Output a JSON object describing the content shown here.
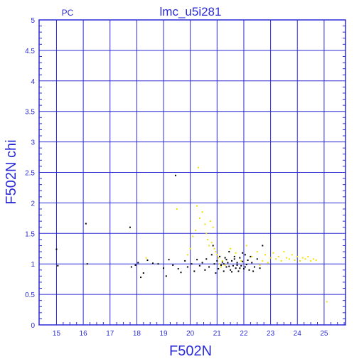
{
  "chart_data": {
    "type": "scatter",
    "title": "lmc_u5i281",
    "tag": "PC",
    "xlabel": "F502N",
    "ylabel": "F502N chi",
    "xlim": [
      14.35,
      25.8
    ],
    "ylim": [
      0,
      5
    ],
    "xticks": [
      15,
      16,
      17,
      18,
      19,
      20,
      21,
      22,
      23,
      24,
      25
    ],
    "yticks": [
      0,
      0.5,
      1,
      1.5,
      2,
      2.5,
      3,
      3.5,
      4,
      4.5,
      5
    ],
    "grid": true,
    "colors": {
      "axis": "#2b2bd6",
      "grid": "#2b2bd6",
      "black": "#000000",
      "yellow": "#f2e000"
    },
    "series": [
      {
        "color_key": "black",
        "points": [
          [
            15.0,
            1.24
          ],
          [
            15.05,
            0.97
          ],
          [
            16.1,
            1.66
          ],
          [
            16.15,
            1.0
          ],
          [
            17.75,
            1.6
          ],
          [
            17.8,
            0.95
          ],
          [
            17.95,
            0.98
          ],
          [
            18.05,
            1.02
          ],
          [
            18.15,
            0.78
          ],
          [
            18.25,
            0.85
          ],
          [
            18.4,
            1.06
          ],
          [
            18.6,
            1.01
          ],
          [
            18.8,
            1.0
          ],
          [
            19.0,
            0.93
          ],
          [
            19.1,
            0.8
          ],
          [
            19.2,
            1.07
          ],
          [
            19.35,
            0.98
          ],
          [
            19.45,
            2.45
          ],
          [
            19.55,
            0.92
          ],
          [
            19.65,
            0.86
          ],
          [
            19.8,
            1.05
          ],
          [
            19.9,
            0.95
          ],
          [
            20.05,
            1.0
          ],
          [
            20.15,
            0.88
          ],
          [
            20.25,
            1.07
          ],
          [
            20.35,
            0.97
          ],
          [
            20.45,
            1.02
          ],
          [
            20.55,
            0.9
          ],
          [
            20.6,
            1.08
          ],
          [
            20.7,
            0.95
          ],
          [
            20.8,
            1.15
          ],
          [
            20.85,
            1.3
          ],
          [
            20.9,
            1.0
          ],
          [
            20.95,
            0.85
          ],
          [
            21.0,
            1.05
          ],
          [
            21.05,
            0.92
          ],
          [
            21.1,
            1.12
          ],
          [
            21.15,
            0.98
          ],
          [
            21.2,
            1.03
          ],
          [
            21.25,
            0.88
          ],
          [
            21.3,
            1.1
          ],
          [
            21.35,
            0.95
          ],
          [
            21.4,
            1.02
          ],
          [
            21.45,
            1.2
          ],
          [
            21.5,
            0.9
          ],
          [
            21.55,
            1.05
          ],
          [
            21.6,
            0.97
          ],
          [
            21.65,
            1.08
          ],
          [
            21.7,
            0.93
          ],
          [
            21.75,
            1.02
          ],
          [
            21.8,
            0.88
          ],
          [
            21.85,
            1.1
          ],
          [
            21.9,
            0.97
          ],
          [
            21.95,
            1.04
          ],
          [
            22.0,
            0.92
          ],
          [
            22.05,
            1.15
          ],
          [
            22.1,
            0.99
          ],
          [
            22.15,
            1.06
          ],
          [
            22.2,
            0.9
          ],
          [
            22.3,
            1.02
          ],
          [
            22.4,
            0.95
          ],
          [
            22.5,
            1.08
          ],
          [
            22.6,
            0.93
          ],
          [
            22.7,
            1.3
          ],
          [
            21.55,
            0.87
          ],
          [
            21.65,
            1.12
          ],
          [
            21.75,
            0.98
          ],
          [
            21.85,
            0.93
          ],
          [
            21.95,
            1.18
          ],
          [
            22.05,
            0.95
          ],
          [
            21.45,
            0.96
          ],
          [
            21.35,
            1.07
          ],
          [
            22.25,
            1.12
          ],
          [
            21.25,
            1.0
          ],
          [
            22.35,
            0.88
          ]
        ]
      },
      {
        "color_key": "yellow",
        "points": [
          [
            18.35,
            1.1
          ],
          [
            19.5,
            1.9
          ],
          [
            19.9,
            1.15
          ],
          [
            20.0,
            1.25
          ],
          [
            20.1,
            1.45
          ],
          [
            20.2,
            1.55
          ],
          [
            20.25,
            1.95
          ],
          [
            20.3,
            2.58
          ],
          [
            20.35,
            1.75
          ],
          [
            20.45,
            1.85
          ],
          [
            20.55,
            1.65
          ],
          [
            20.6,
            1.5
          ],
          [
            20.65,
            1.4
          ],
          [
            20.7,
            1.3
          ],
          [
            20.75,
            1.7
          ],
          [
            20.8,
            1.35
          ],
          [
            20.85,
            1.6
          ],
          [
            20.9,
            1.25
          ],
          [
            20.95,
            1.2
          ],
          [
            21.0,
            1.15
          ],
          [
            21.05,
            1.1
          ],
          [
            21.1,
            1.0
          ],
          [
            21.15,
            0.95
          ],
          [
            21.2,
            1.05
          ],
          [
            21.3,
            0.98
          ],
          [
            21.5,
            1.25
          ],
          [
            21.7,
            1.18
          ],
          [
            21.9,
            1.05
          ],
          [
            22.1,
            1.3
          ],
          [
            22.3,
            1.12
          ],
          [
            22.5,
            1.2
          ],
          [
            22.6,
            0.98
          ],
          [
            22.7,
            1.05
          ],
          [
            22.8,
            1.15
          ],
          [
            22.9,
            1.02
          ],
          [
            23.0,
            1.1
          ],
          [
            23.1,
            1.18
          ],
          [
            23.2,
            1.08
          ],
          [
            23.3,
            1.12
          ],
          [
            23.4,
            1.05
          ],
          [
            23.5,
            1.2
          ],
          [
            23.6,
            1.1
          ],
          [
            23.7,
            1.08
          ],
          [
            23.8,
            1.15
          ],
          [
            23.9,
            1.06
          ],
          [
            24.0,
            1.12
          ],
          [
            24.1,
            1.05
          ],
          [
            24.2,
            1.1
          ],
          [
            24.3,
            1.08
          ],
          [
            24.4,
            1.12
          ],
          [
            24.5,
            1.05
          ],
          [
            24.6,
            1.08
          ],
          [
            24.7,
            1.06
          ],
          [
            25.1,
            0.38
          ]
        ]
      }
    ]
  }
}
